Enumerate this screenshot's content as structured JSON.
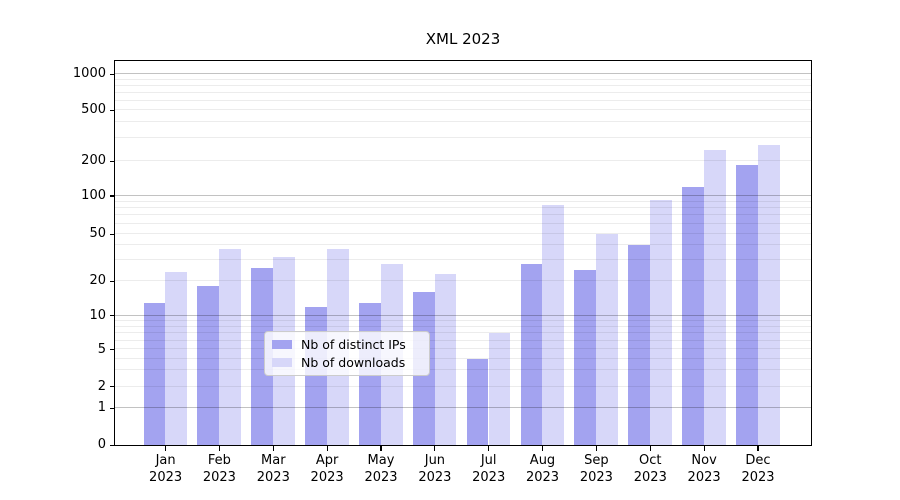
{
  "chart_data": {
    "type": "bar",
    "title": "XML 2023",
    "categories": [
      "Jan 2023",
      "Feb 2023",
      "Mar 2023",
      "Apr 2023",
      "May 2023",
      "Jun 2023",
      "Jul 2023",
      "Aug 2023",
      "Sep 2023",
      "Oct 2023",
      "Nov 2023",
      "Dec 2023"
    ],
    "series": [
      {
        "name": "Nb of distinct IPs",
        "color": "#a3a3f0",
        "values": [
          13,
          18,
          26,
          12,
          13,
          16,
          4,
          28,
          25,
          40,
          120,
          185
        ]
      },
      {
        "name": "Nb of downloads",
        "color": "#d7d7f9",
        "values": [
          24,
          37,
          32,
          37,
          28,
          23,
          7,
          85,
          50,
          93,
          245,
          268
        ]
      }
    ],
    "yticks": [
      0,
      1,
      2,
      5,
      10,
      20,
      50,
      100,
      200,
      500,
      1000
    ],
    "xlabel": "",
    "ylabel": "",
    "y_scale": "symlog",
    "ylim": [
      0,
      1285
    ],
    "grid": true,
    "legend_position": "lower center"
  }
}
